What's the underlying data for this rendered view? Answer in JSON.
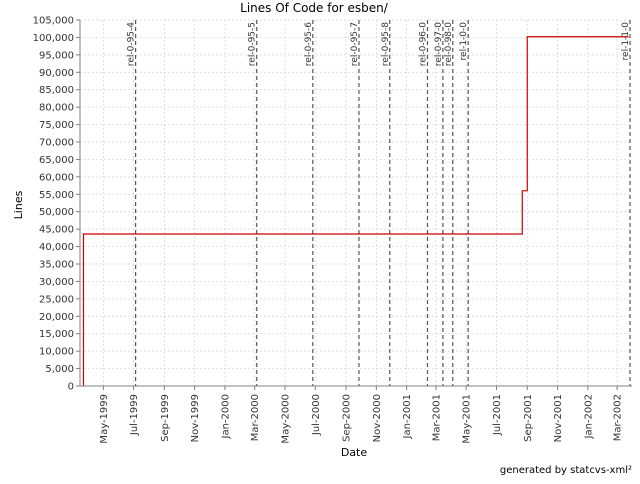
{
  "chart_data": {
    "type": "line",
    "title": "Lines Of Code for esben/",
    "xlabel": "Date",
    "ylabel": "Lines",
    "ylim": [
      0,
      105000
    ],
    "xlim": [
      "1999-03-15",
      "2002-03-31"
    ],
    "yticks": [
      0,
      5000,
      10000,
      15000,
      20000,
      25000,
      30000,
      35000,
      40000,
      45000,
      50000,
      55000,
      60000,
      65000,
      70000,
      75000,
      80000,
      85000,
      90000,
      95000,
      100000,
      105000
    ],
    "ytick_labels": [
      "0",
      "5,000",
      "10,000",
      "15,000",
      "20,000",
      "25,000",
      "30,000",
      "35,000",
      "40,000",
      "45,000",
      "50,000",
      "55,000",
      "60,000",
      "65,000",
      "70,000",
      "75,000",
      "80,000",
      "85,000",
      "90,000",
      "95,000",
      "100,000",
      "105,000"
    ],
    "xticks": [
      {
        "date": "1999-05-01",
        "label": "May-1999"
      },
      {
        "date": "1999-07-01",
        "label": "Jul-1999"
      },
      {
        "date": "1999-09-01",
        "label": "Sep-1999"
      },
      {
        "date": "1999-11-01",
        "label": "Nov-1999"
      },
      {
        "date": "2000-01-01",
        "label": "Jan-2000"
      },
      {
        "date": "2000-03-01",
        "label": "Mar-2000"
      },
      {
        "date": "2000-05-01",
        "label": "May-2000"
      },
      {
        "date": "2000-07-01",
        "label": "Jul-2000"
      },
      {
        "date": "2000-09-01",
        "label": "Sep-2000"
      },
      {
        "date": "2000-11-01",
        "label": "Nov-2000"
      },
      {
        "date": "2001-01-01",
        "label": "Jan-2001"
      },
      {
        "date": "2001-03-01",
        "label": "Mar-2001"
      },
      {
        "date": "2001-05-01",
        "label": "May-2001"
      },
      {
        "date": "2001-07-01",
        "label": "Jul-2001"
      },
      {
        "date": "2001-09-01",
        "label": "Sep-2001"
      },
      {
        "date": "2001-11-01",
        "label": "Nov-2001"
      },
      {
        "date": "2002-01-01",
        "label": "Jan-2002"
      },
      {
        "date": "2002-03-01",
        "label": "Mar-2002"
      }
    ],
    "grid": true,
    "series": [
      {
        "color": "#cc0000",
        "step": true,
        "points": [
          {
            "x": "1999-03-22",
            "y": 0
          },
          {
            "x": "1999-03-22",
            "y": 43600
          },
          {
            "x": "2001-08-22",
            "y": 56000
          },
          {
            "x": "2001-09-01",
            "y": 100200
          },
          {
            "x": "2002-03-24",
            "y": 100200
          }
        ]
      }
    ],
    "markers": [
      {
        "date": "1999-07-05",
        "label": "rel-0-95-4"
      },
      {
        "date": "2000-03-05",
        "label": "rel-0-95-5"
      },
      {
        "date": "2000-06-26",
        "label": "rel-0-95-6"
      },
      {
        "date": "2000-09-27",
        "label": "rel-0-95-7"
      },
      {
        "date": "2000-11-28",
        "label": "rel-0-95-8"
      },
      {
        "date": "2001-02-12",
        "label": "rel-0-96-0"
      },
      {
        "date": "2001-03-15",
        "label": "rel-0-97-0"
      },
      {
        "date": "2001-04-04",
        "label": "rel-0-98-0"
      },
      {
        "date": "2001-05-05",
        "label": "rel-1-0-0"
      },
      {
        "date": "2002-03-27",
        "label": "rel-1-1-0"
      }
    ]
  },
  "footer": "generated by statcvs-xml²",
  "colors": {
    "line": "#cc0000",
    "marker": "#555555",
    "grid": "#d4d4d4",
    "axis": "#808080"
  }
}
